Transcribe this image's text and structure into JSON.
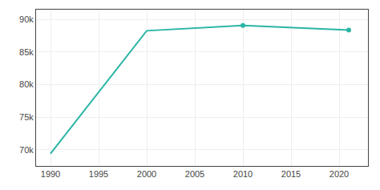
{
  "chart_data": {
    "type": "line",
    "series": [
      {
        "type": "line",
        "color": "#2ab5a5",
        "x": [
          1990,
          2000,
          2010,
          2021
        ],
        "values": [
          69392,
          88257,
          89078,
          88364
        ]
      },
      {
        "type": "scatter",
        "marker": "circle",
        "color": "#2ab5a5",
        "x": [
          2010,
          2021
        ],
        "values": [
          89078,
          88364
        ]
      }
    ],
    "xlim": [
      1988.5,
      2023
    ],
    "ylim": [
      67500,
      91500
    ],
    "xticks": [
      1990,
      1995,
      2000,
      2005,
      2010,
      2015,
      2020
    ],
    "yticks": [
      {
        "value": 70000,
        "label": "70k"
      },
      {
        "value": 75000,
        "label": "75k"
      },
      {
        "value": 80000,
        "label": "80k"
      },
      {
        "value": 85000,
        "label": "85k"
      },
      {
        "value": 90000,
        "label": "90k"
      }
    ],
    "grid": true
  }
}
